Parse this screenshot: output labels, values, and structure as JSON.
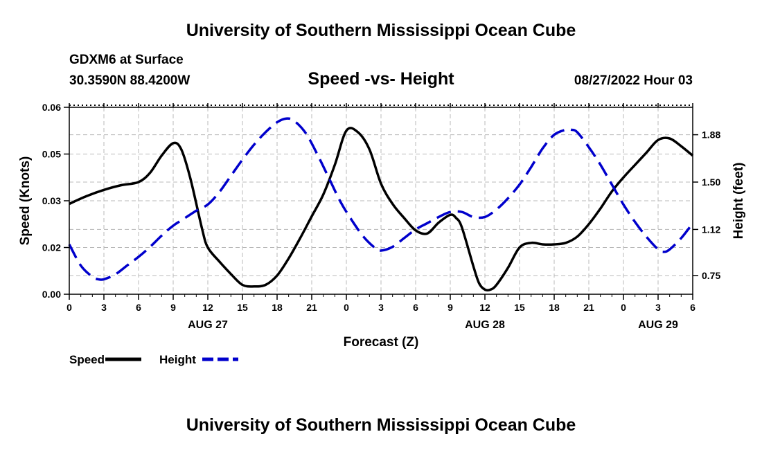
{
  "header": {
    "title": "University of Southern Mississippi Ocean Cube",
    "station": "GDXM6 at Surface",
    "coords": "30.3590N  88.4200W",
    "subtitle": "Speed -vs- Height",
    "datestamp": "08/27/2022 Hour 03"
  },
  "footer": {
    "title": "University of Southern Mississippi Ocean Cube"
  },
  "chart_data": {
    "type": "line",
    "title": "Speed -vs- Height",
    "xlabel": "Forecast (Z)",
    "ylabel_left": "Speed (Knots)",
    "ylabel_right": "Height (feet)",
    "x_range": [
      0,
      54
    ],
    "x_unit": "hours from 08/27 00Z",
    "x_ticks": [
      {
        "x": 0,
        "label": "0"
      },
      {
        "x": 3,
        "label": "3"
      },
      {
        "x": 6,
        "label": "6"
      },
      {
        "x": 9,
        "label": "9"
      },
      {
        "x": 12,
        "label": "12"
      },
      {
        "x": 15,
        "label": "15"
      },
      {
        "x": 18,
        "label": "18"
      },
      {
        "x": 21,
        "label": "21"
      },
      {
        "x": 24,
        "label": "0"
      },
      {
        "x": 27,
        "label": "3"
      },
      {
        "x": 30,
        "label": "6"
      },
      {
        "x": 33,
        "label": "9"
      },
      {
        "x": 36,
        "label": "12"
      },
      {
        "x": 39,
        "label": "15"
      },
      {
        "x": 42,
        "label": "18"
      },
      {
        "x": 45,
        "label": "21"
      },
      {
        "x": 48,
        "label": "0"
      },
      {
        "x": 51,
        "label": "3"
      },
      {
        "x": 54,
        "label": "6"
      }
    ],
    "day_labels": [
      {
        "x": 12,
        "label": "AUG 27"
      },
      {
        "x": 36,
        "label": "AUG 28"
      },
      {
        "x": 51,
        "label": "AUG 29"
      }
    ],
    "y_left_range": [
      0,
      0.06
    ],
    "y_left_ticks": [
      {
        "v": 0.0,
        "label": "0.00"
      },
      {
        "v": 0.015,
        "label": "0.02"
      },
      {
        "v": 0.03,
        "label": "0.03"
      },
      {
        "v": 0.045,
        "label": "0.05"
      },
      {
        "v": 0.06,
        "label": "0.06"
      }
    ],
    "y_right_range": [
      0.6,
      2.1
    ],
    "y_right_ticks": [
      {
        "v": 0.75,
        "label": "0.75"
      },
      {
        "v": 1.12,
        "label": "1.12"
      },
      {
        "v": 1.5,
        "label": "1.50"
      },
      {
        "v": 1.88,
        "label": "1.88"
      }
    ],
    "grid": true,
    "legend": [
      {
        "name": "Speed",
        "color": "#000000",
        "dash": "solid"
      },
      {
        "name": "Height",
        "color": "#0000cc",
        "dash": "dashed"
      }
    ],
    "series": [
      {
        "name": "Speed",
        "axis": "left",
        "color": "#000000",
        "dash": "solid",
        "x": [
          0,
          1.5,
          3,
          4.5,
          6,
          7,
          8,
          9,
          9.7,
          10.5,
          11.5,
          12,
          13,
          14,
          15,
          16,
          17,
          18,
          19,
          20,
          21,
          22,
          23,
          24,
          25,
          26,
          27,
          28,
          29,
          30,
          31,
          32,
          33,
          33.5,
          34,
          35,
          35.5,
          36,
          36.5,
          37,
          38,
          39,
          40,
          41,
          42,
          43,
          44,
          45,
          46,
          47,
          48,
          49,
          50,
          51,
          52,
          53,
          54
        ],
        "y": [
          0.029,
          0.0315,
          0.0335,
          0.035,
          0.036,
          0.039,
          0.0445,
          0.0485,
          0.0465,
          0.037,
          0.021,
          0.015,
          0.0105,
          0.0065,
          0.003,
          0.0025,
          0.003,
          0.006,
          0.0115,
          0.018,
          0.025,
          0.032,
          0.0415,
          0.0525,
          0.052,
          0.0465,
          0.0355,
          0.029,
          0.0245,
          0.0205,
          0.0195,
          0.023,
          0.0255,
          0.0245,
          0.0215,
          0.009,
          0.0035,
          0.0015,
          0.0015,
          0.003,
          0.0085,
          0.015,
          0.0165,
          0.016,
          0.016,
          0.0165,
          0.0185,
          0.0225,
          0.0275,
          0.033,
          0.0375,
          0.0415,
          0.0455,
          0.0495,
          0.05,
          0.0475,
          0.0445
        ]
      },
      {
        "name": "Height",
        "axis": "right",
        "color": "#0000cc",
        "dash": "dashed",
        "x": [
          0,
          1,
          2,
          2.5,
          3,
          4,
          5,
          6,
          7,
          8,
          9,
          10,
          11,
          12,
          13,
          14,
          15,
          16,
          17,
          18,
          18.8,
          19.5,
          20.5,
          21.5,
          22.5,
          23.5,
          24.5,
          25.5,
          26.5,
          27,
          28,
          29,
          30,
          31,
          32,
          33,
          34,
          35,
          36,
          37,
          38,
          39,
          40,
          41,
          42,
          43,
          43.5,
          44,
          45,
          46,
          47,
          48,
          49,
          50,
          51,
          51.5,
          52,
          53,
          54
        ],
        "y": [
          1.0,
          0.83,
          0.74,
          0.72,
          0.72,
          0.76,
          0.83,
          0.9,
          0.98,
          1.07,
          1.15,
          1.21,
          1.27,
          1.32,
          1.42,
          1.55,
          1.68,
          1.8,
          1.9,
          1.98,
          2.01,
          1.99,
          1.89,
          1.72,
          1.53,
          1.34,
          1.19,
          1.06,
          0.97,
          0.95,
          0.98,
          1.05,
          1.12,
          1.17,
          1.22,
          1.26,
          1.26,
          1.22,
          1.22,
          1.28,
          1.37,
          1.48,
          1.62,
          1.77,
          1.88,
          1.92,
          1.92,
          1.9,
          1.78,
          1.64,
          1.48,
          1.32,
          1.18,
          1.06,
          0.96,
          0.94,
          0.96,
          1.05,
          1.17
        ]
      }
    ]
  }
}
